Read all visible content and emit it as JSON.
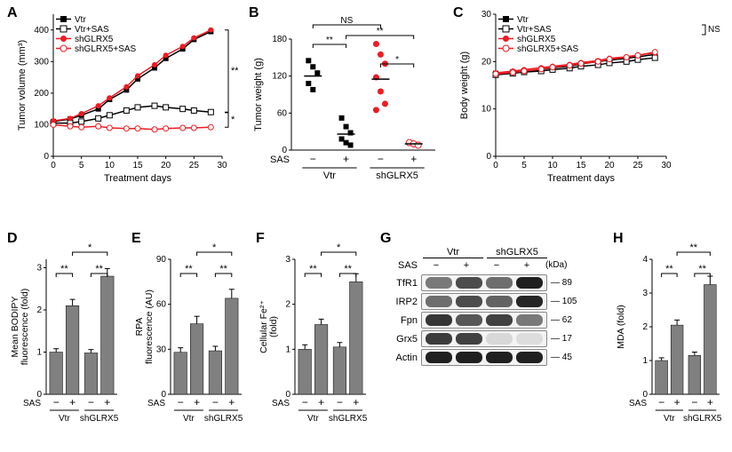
{
  "panelA": {
    "label": "A",
    "type": "line",
    "ylabel": "Tumor volume (mm³)",
    "xlabel": "Treatment days",
    "xlim": [
      0,
      30
    ],
    "xticks": [
      0,
      5,
      10,
      15,
      20,
      25,
      30
    ],
    "ylim": [
      0,
      450
    ],
    "yticks": [
      0,
      100,
      200,
      300,
      400
    ],
    "legend": [
      "Vtr",
      "Vtr+SAS",
      "shGLRX5",
      "shGLRX5+SAS"
    ],
    "series": {
      "vtr": {
        "color": "#000",
        "marker": "sq-fill",
        "x": [
          0,
          3,
          5,
          8,
          10,
          13,
          15,
          18,
          20,
          23,
          25,
          28
        ],
        "y": [
          110,
          118,
          130,
          150,
          180,
          210,
          245,
          280,
          310,
          340,
          370,
          395
        ]
      },
      "vtr_sas": {
        "color": "#000",
        "marker": "sq-open",
        "x": [
          0,
          3,
          5,
          8,
          10,
          13,
          15,
          18,
          20,
          23,
          25,
          28
        ],
        "y": [
          105,
          105,
          110,
          120,
          130,
          145,
          155,
          160,
          155,
          150,
          145,
          140
        ]
      },
      "sh": {
        "color": "#ed1c24",
        "marker": "cir-fill",
        "x": [
          0,
          3,
          5,
          8,
          10,
          13,
          15,
          18,
          20,
          23,
          25,
          28
        ],
        "y": [
          112,
          120,
          135,
          160,
          185,
          220,
          255,
          290,
          320,
          348,
          375,
          400
        ]
      },
      "sh_sas": {
        "color": "#ed1c24",
        "marker": "cir-open",
        "x": [
          0,
          3,
          5,
          8,
          10,
          13,
          15,
          18,
          20,
          23,
          25,
          28
        ],
        "y": [
          100,
          95,
          92,
          95,
          90,
          88,
          88,
          85,
          88,
          90,
          90,
          92
        ]
      }
    },
    "annotations": [
      {
        "text": "**",
        "pos": "upper-bracket"
      },
      {
        "text": "*",
        "pos": "lower-bracket"
      }
    ]
  },
  "panelB": {
    "label": "B",
    "type": "scatter",
    "ylabel": "Tumor weight (g)",
    "xticklabels": [
      "−",
      "+",
      "−",
      "+"
    ],
    "sas_label": "SAS",
    "groups": [
      "Vtr",
      "shGLRX5"
    ],
    "ylim": [
      0,
      180
    ],
    "yticks": [
      0,
      60,
      120,
      180
    ],
    "points": {
      "vtr_minus": {
        "color": "#000",
        "marker": "sq",
        "y": [
          145,
          135,
          125,
          108,
          98
        ],
        "mean": 120
      },
      "vtr_plus": {
        "color": "#000",
        "marker": "sq",
        "y": [
          52,
          38,
          28,
          18,
          12,
          8
        ],
        "mean": 26
      },
      "sh_minus": {
        "color": "#ed1c24",
        "marker": "cir",
        "y": [
          172,
          155,
          140,
          118,
          95,
          75,
          65
        ],
        "mean": 115
      },
      "sh_plus": {
        "color": "#ed1c24",
        "marker": "cir-open",
        "y": [
          12,
          10,
          8
        ],
        "mean": 10
      }
    },
    "sig": [
      {
        "text": "**",
        "between": [
          0,
          1
        ]
      },
      {
        "text": "NS",
        "between": [
          0,
          2
        ]
      },
      {
        "text": "**",
        "between": [
          1,
          3
        ]
      },
      {
        "text": "*",
        "between": [
          2,
          3
        ]
      }
    ]
  },
  "panelC": {
    "label": "C",
    "type": "line",
    "ylabel": "Body weight (g)",
    "xlabel": "Treatment days",
    "xlim": [
      0,
      30
    ],
    "xticks": [
      0,
      5,
      10,
      15,
      20,
      25,
      30
    ],
    "ylim": [
      0,
      30
    ],
    "yticks": [
      0,
      10,
      20,
      30
    ],
    "legend": [
      "Vtr",
      "Vtr+SAS",
      "shGLRX5",
      "shGLRX5+SAS"
    ],
    "series": {
      "vtr": {
        "color": "#000",
        "marker": "sq-fill",
        "x": [
          0,
          3,
          5,
          8,
          10,
          13,
          15,
          18,
          20,
          23,
          25,
          28
        ],
        "y": [
          17.5,
          17.8,
          18,
          18.3,
          18.7,
          19,
          19.5,
          20,
          20.3,
          20.7,
          21,
          21.5
        ]
      },
      "vtr_sas": {
        "color": "#000",
        "marker": "sq-open",
        "x": [
          0,
          3,
          5,
          8,
          10,
          13,
          15,
          18,
          20,
          23,
          25,
          28
        ],
        "y": [
          17.2,
          17.5,
          17.8,
          18,
          18.3,
          18.6,
          19,
          19.3,
          19.7,
          20,
          20.4,
          20.8
        ]
      },
      "sh": {
        "color": "#ed1c24",
        "marker": "cir-fill",
        "x": [
          0,
          3,
          5,
          8,
          10,
          13,
          15,
          18,
          20,
          23,
          25,
          28
        ],
        "y": [
          17.6,
          18,
          18.3,
          18.7,
          19,
          19.4,
          19.8,
          20.2,
          20.7,
          21,
          21.4,
          21.8
        ]
      },
      "sh_sas": {
        "color": "#ed1c24",
        "marker": "cir-open",
        "x": [
          0,
          3,
          5,
          8,
          10,
          13,
          15,
          18,
          20,
          23,
          25,
          28
        ],
        "y": [
          17.4,
          17.7,
          18,
          18.4,
          18.8,
          19.2,
          19.6,
          20,
          20.5,
          20.9,
          21.3,
          22
        ]
      }
    },
    "annotations": [
      {
        "text": "NS"
      },
      {
        "text": "NS"
      }
    ]
  },
  "panelD": {
    "label": "D",
    "type": "bar",
    "ylabel": "Mean BODIPY\nfluorescence (fold)",
    "xticklabels": [
      "−",
      "+",
      "−",
      "+"
    ],
    "sas_label": "SAS",
    "groups": [
      "Vtr",
      "shGLRX5"
    ],
    "ylim": [
      0,
      3.2
    ],
    "yticks": [
      0,
      1,
      2,
      3
    ],
    "bars": [
      1.0,
      2.1,
      0.98,
      2.8
    ],
    "errs": [
      0.08,
      0.15,
      0.08,
      0.18
    ],
    "bar_color": "#808080",
    "sig": [
      {
        "text": "**",
        "between": [
          0,
          1
        ]
      },
      {
        "text": "*",
        "between": [
          1,
          3
        ]
      },
      {
        "text": "**",
        "between": [
          2,
          3
        ]
      }
    ]
  },
  "panelE": {
    "label": "E",
    "type": "bar",
    "ylabel": "RPA\nfluorescence (AU)",
    "xticklabels": [
      "−",
      "+",
      "−",
      "+"
    ],
    "sas_label": "SAS",
    "groups": [
      "Vtr",
      "shGLRX5"
    ],
    "ylim": [
      0,
      90
    ],
    "yticks": [
      0,
      30,
      60,
      90
    ],
    "bars": [
      28,
      47,
      29,
      64
    ],
    "errs": [
      3,
      5,
      3,
      6
    ],
    "bar_color": "#808080",
    "sig": [
      {
        "text": "**",
        "between": [
          0,
          1
        ]
      },
      {
        "text": "*",
        "between": [
          1,
          3
        ]
      },
      {
        "text": "**",
        "between": [
          2,
          3
        ]
      }
    ]
  },
  "panelF": {
    "label": "F",
    "type": "bar",
    "ylabel": "Cellular Fe²⁺\n(fold)",
    "xticklabels": [
      "−",
      "+",
      "−",
      "+"
    ],
    "sas_label": "SAS",
    "groups": [
      "Vtr",
      "shGLRX5"
    ],
    "ylim": [
      0,
      3.0
    ],
    "yticks": [
      0,
      1,
      2,
      3
    ],
    "bars": [
      1.0,
      1.55,
      1.05,
      2.5
    ],
    "errs": [
      0.1,
      0.12,
      0.1,
      0.18
    ],
    "bar_color": "#808080",
    "sig": [
      {
        "text": "**",
        "between": [
          0,
          1
        ]
      },
      {
        "text": "*",
        "between": [
          1,
          3
        ]
      },
      {
        "text": "**",
        "between": [
          2,
          3
        ]
      }
    ]
  },
  "panelG": {
    "label": "G",
    "type": "western",
    "header_groups": [
      "Vtr",
      "shGLRX5"
    ],
    "sas_label": "SAS",
    "sas_vals": [
      "−",
      "+",
      "−",
      "+"
    ],
    "kda_label": "(kDa)",
    "rows": [
      {
        "name": "TfR1",
        "kda": 89,
        "intensity": [
          0.55,
          0.75,
          0.6,
          0.95
        ]
      },
      {
        "name": "IRP2",
        "kda": 105,
        "intensity": [
          0.6,
          0.75,
          0.65,
          0.92
        ]
      },
      {
        "name": "Fpn",
        "kda": 62,
        "intensity": [
          0.85,
          0.7,
          0.8,
          0.55
        ]
      },
      {
        "name": "Grx5",
        "kda": 17,
        "intensity": [
          0.82,
          0.8,
          0.12,
          0.1
        ]
      },
      {
        "name": "Actin",
        "kda": 45,
        "intensity": [
          0.95,
          0.95,
          0.95,
          0.95
        ]
      }
    ]
  },
  "panelH": {
    "label": "H",
    "type": "bar",
    "ylabel": "MDA (fold)",
    "xticklabels": [
      "−",
      "+",
      "−",
      "+"
    ],
    "sas_label": "SAS",
    "groups": [
      "Vtr",
      "shGLRX5"
    ],
    "ylim": [
      0,
      4
    ],
    "yticks": [
      0,
      1,
      2,
      3,
      4
    ],
    "bars": [
      1.0,
      2.05,
      1.15,
      3.25
    ],
    "errs": [
      0.08,
      0.15,
      0.1,
      0.25
    ],
    "bar_color": "#808080",
    "sig": [
      {
        "text": "**",
        "between": [
          0,
          1
        ]
      },
      {
        "text": "**",
        "between": [
          1,
          3
        ]
      },
      {
        "text": "**",
        "between": [
          2,
          3
        ]
      }
    ]
  }
}
